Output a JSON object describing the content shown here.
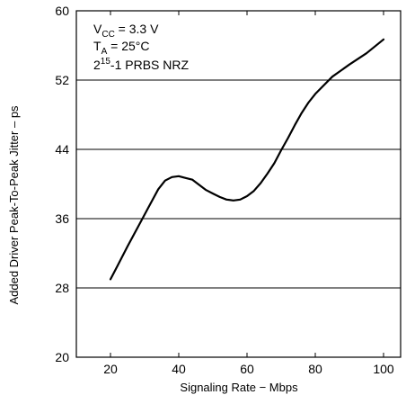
{
  "chart_data": {
    "type": "line",
    "xlabel": "Signaling Rate −  Mbps",
    "ylabel": "Added Driver Peak-To-Peak Jitter – ps",
    "xlim": [
      10,
      105
    ],
    "ylim": [
      20,
      60
    ],
    "x_ticks": [
      20,
      40,
      60,
      80,
      100
    ],
    "y_ticks": [
      20,
      28,
      36,
      44,
      52,
      60
    ],
    "grid": "horizontal",
    "annotations": {
      "vcc": {
        "prefix": "V",
        "sub": "CC",
        "suffix": " = 3.3 V"
      },
      "ta": {
        "prefix": "T",
        "sub": "A",
        "suffix": " = 25°C"
      },
      "prbs": {
        "prefix": "2",
        "sup": "15",
        "suffix": "-1 PRBS NRZ"
      }
    },
    "series": [
      {
        "x": [
          20,
          22,
          25,
          28,
          31,
          34,
          36,
          38,
          40,
          42,
          44,
          46,
          48,
          50,
          52,
          54,
          56,
          58,
          60,
          62,
          64,
          66,
          68,
          70,
          72,
          74,
          76,
          78,
          80,
          85,
          90,
          95,
          100
        ],
        "values": [
          29,
          30.5,
          32.8,
          35,
          37.2,
          39.4,
          40.4,
          40.8,
          40.9,
          40.7,
          40.5,
          39.9,
          39.3,
          38.9,
          38.5,
          38.2,
          38.1,
          38.2,
          38.6,
          39.2,
          40.1,
          41.2,
          42.4,
          43.9,
          45.3,
          46.8,
          48.2,
          49.4,
          50.4,
          52.4,
          53.8,
          55.1,
          56.7
        ]
      }
    ]
  }
}
